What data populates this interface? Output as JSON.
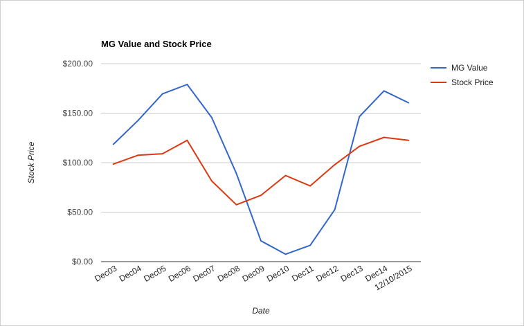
{
  "chart_data": {
    "type": "line",
    "title": "MG Value and Stock Price",
    "xlabel": "Date",
    "ylabel": "Stock Price",
    "categories": [
      "Dec03",
      "Dec04",
      "Dec05",
      "Dec06",
      "Dec07",
      "Dec08",
      "Dec09",
      "Dec10",
      "Dec11",
      "Dec12",
      "Dec13",
      "Dec14",
      "12/10/2015"
    ],
    "y_ticks": [
      "$0.00",
      "$50.00",
      "$100.00",
      "$150.00",
      "$200.00"
    ],
    "ylim": [
      0,
      200
    ],
    "grid": true,
    "legend_position": "right",
    "series": [
      {
        "name": "MG Value",
        "color": "#3366cc",
        "values": [
          118.5,
          142.5,
          169.5,
          179,
          145.5,
          89,
          21,
          7.5,
          16.5,
          52.5,
          146.5,
          172.5,
          160.5
        ]
      },
      {
        "name": "Stock Price",
        "color": "#dc3912",
        "values": [
          98.5,
          107.5,
          109,
          122.5,
          81.5,
          57.5,
          67,
          87,
          76.5,
          98,
          116.5,
          125.5,
          122.5
        ]
      }
    ]
  }
}
